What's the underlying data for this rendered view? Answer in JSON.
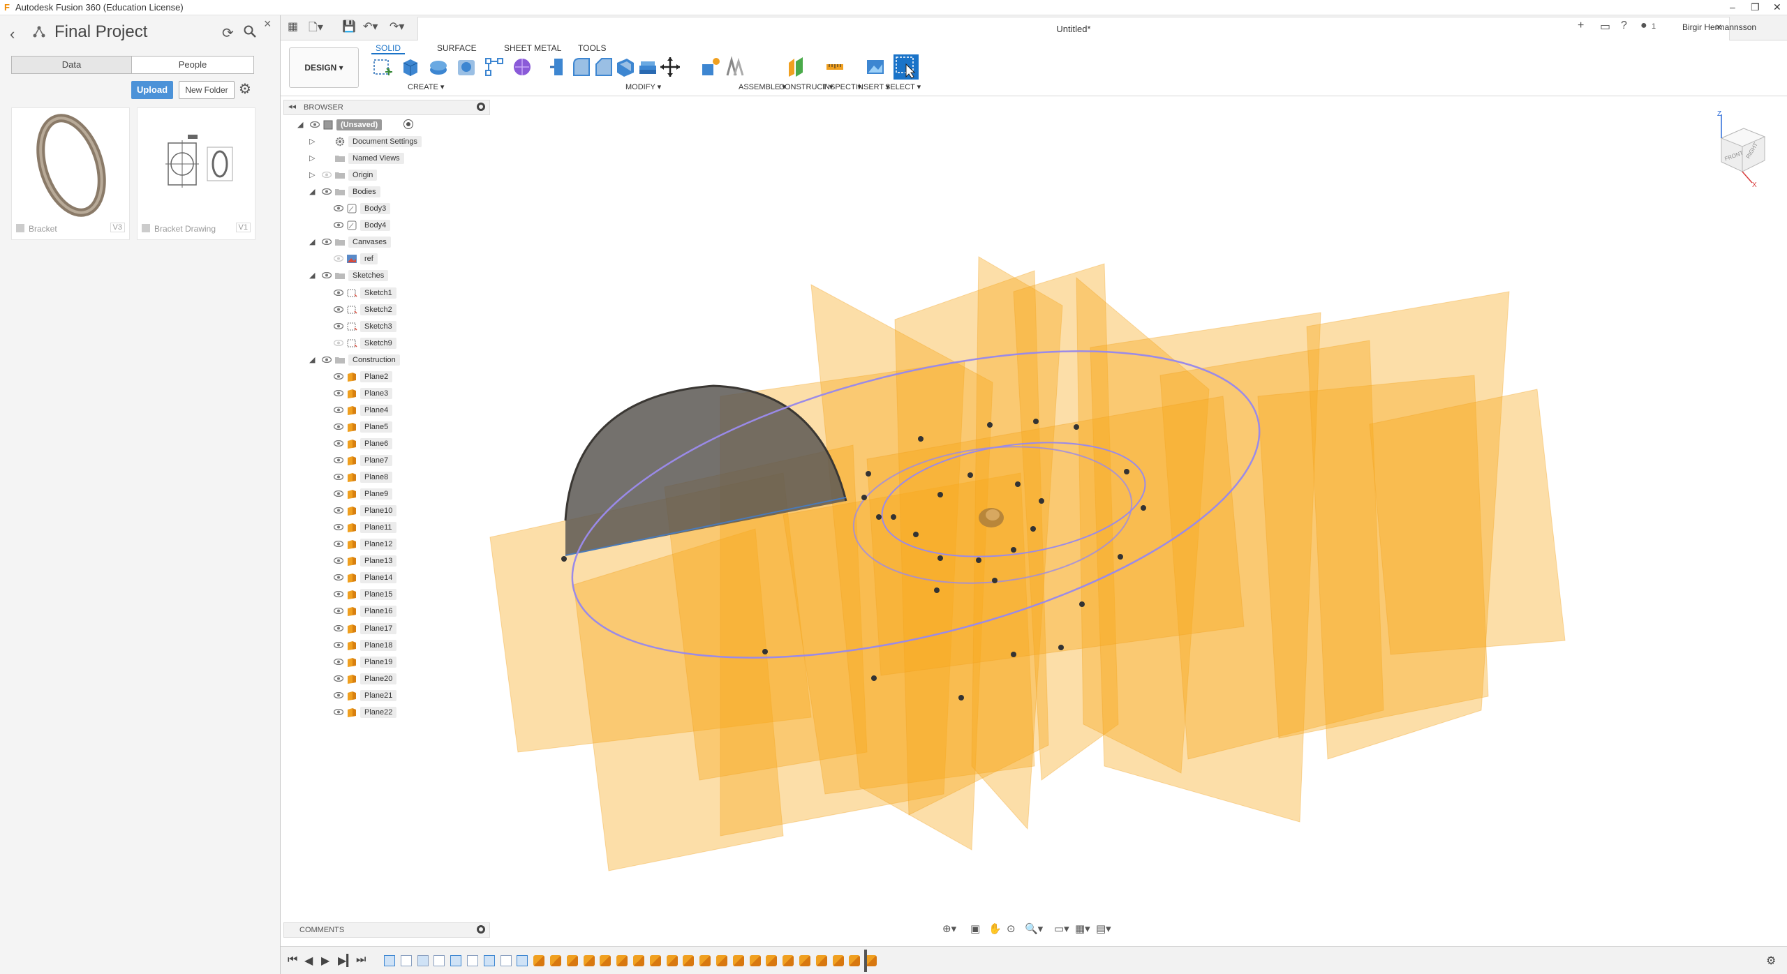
{
  "window": {
    "title": "Autodesk Fusion 360 (Education License)",
    "controls": [
      "–",
      "❐",
      "✕"
    ]
  },
  "data_panel": {
    "project_title": "Final Project",
    "tabs": [
      {
        "label": "Data",
        "active": true
      },
      {
        "label": "People",
        "active": false
      }
    ],
    "upload_label": "Upload",
    "new_folder_label": "New Folder",
    "items": [
      {
        "name": "Bracket",
        "version": "V3"
      },
      {
        "name": "Bracket Drawing",
        "version": "V1"
      }
    ]
  },
  "document": {
    "name": "Untitled*"
  },
  "user": {
    "name": "Birgir Hermannsson",
    "notifications": "1"
  },
  "ribbon": {
    "workspace": "DESIGN",
    "tabs": [
      {
        "label": "SOLID",
        "active": true
      },
      {
        "label": "SURFACE",
        "active": false
      },
      {
        "label": "SHEET METAL",
        "active": false
      },
      {
        "label": "TOOLS",
        "active": false
      }
    ],
    "groups": [
      "CREATE",
      "MODIFY",
      "ASSEMBLE",
      "CONSTRUCT",
      "INSPECT",
      "INSERT",
      "SELECT"
    ]
  },
  "browser": {
    "title": "BROWSER",
    "root": "(Unsaved)",
    "folders": {
      "document_settings": "Document Settings",
      "named_views": "Named Views",
      "origin": "Origin",
      "bodies": "Bodies",
      "canvases": "Canvases",
      "sketches": "Sketches",
      "construction": "Construction"
    },
    "bodies": [
      "Body3",
      "Body4"
    ],
    "canvases": [
      "ref"
    ],
    "sketches": [
      "Sketch1",
      "Sketch2",
      "Sketch3",
      "Sketch9"
    ],
    "planes": [
      "Plane2",
      "Plane3",
      "Plane4",
      "Plane5",
      "Plane6",
      "Plane7",
      "Plane8",
      "Plane9",
      "Plane10",
      "Plane11",
      "Plane12",
      "Plane13",
      "Plane14",
      "Plane15",
      "Plane16",
      "Plane17",
      "Plane18",
      "Plane19",
      "Plane20",
      "Plane21",
      "Plane22"
    ]
  },
  "viewcube": {
    "faces": [
      "FRONT",
      "RIGHT"
    ],
    "axes": [
      "Z",
      "X"
    ]
  },
  "comments": {
    "title": "COMMENTS"
  },
  "colors": {
    "accent": "#1a73c8",
    "plane": "#f7a81b",
    "upload": "#4b92d8",
    "body": "#5a5650"
  }
}
